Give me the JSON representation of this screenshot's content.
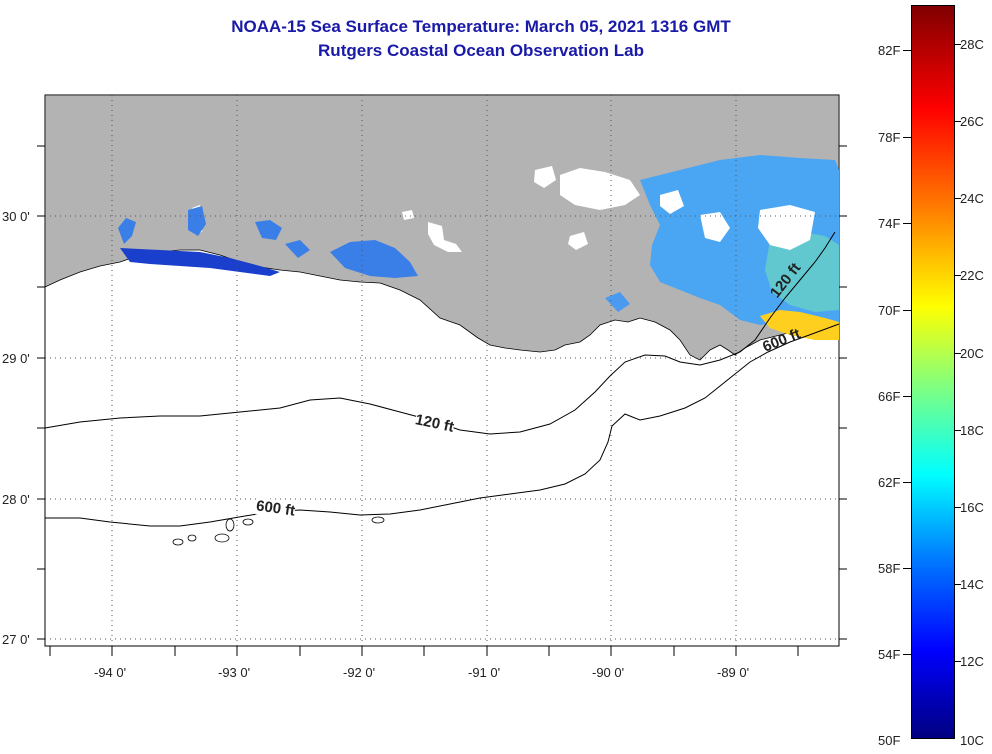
{
  "title": {
    "line1": "NOAA-15 Sea Surface Temperature:  March 05, 2021 1316 GMT",
    "line2": "Rutgers Coastal Ocean Observation Lab"
  },
  "map": {
    "lat_labels": [
      "30 0'",
      "29 0'",
      "28 0'",
      "27 0'"
    ],
    "lon_labels": [
      "-94 0'",
      "-93 0'",
      "-92 0'",
      "-91 0'",
      "-90 0'",
      "-89 0'"
    ],
    "contours": [
      {
        "name": "120 ft",
        "labels": [
          "120 ft",
          "120 ft"
        ]
      },
      {
        "name": "600 ft",
        "labels": [
          "600 ft",
          "600 ft"
        ]
      }
    ],
    "colors": {
      "land": "#b3b3b3",
      "ocean": "#ffffff",
      "grid": "#555555"
    }
  },
  "colorbar": {
    "fahrenheit": [
      "82F",
      "78F",
      "74F",
      "70F",
      "66F",
      "62F",
      "58F",
      "54F",
      "50F"
    ],
    "celsius": [
      "28C",
      "26C",
      "24C",
      "22C",
      "20C",
      "18C",
      "16C",
      "14C",
      "12C",
      "10C"
    ]
  }
}
